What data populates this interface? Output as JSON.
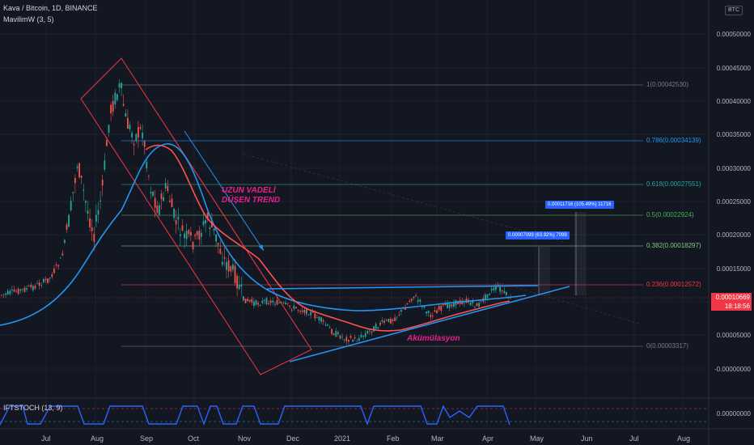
{
  "header": {
    "symbol_line": "Kava / Bitcoin, 1D, BINANCE",
    "indicator": "MavilimW (3, 5)",
    "currency_badge": "BTC"
  },
  "indicator_pane": {
    "label": "IFTSTOCH (13, 9)",
    "value": "0.00000000"
  },
  "price_axis": {
    "labels": [
      "0.00050000",
      "0.00045000",
      "0.00040000",
      "0.00035000",
      "0.00030000",
      "0.00025000",
      "0.00020000",
      "0.00015000",
      "0.00005000",
      "-0.00000000"
    ]
  },
  "current_price": {
    "price": "0.00010669",
    "countdown": "18:18:56",
    "color": "#f23645"
  },
  "fib_levels": [
    {
      "label": "1(0.00042530)",
      "color": "#787b86"
    },
    {
      "label": "0.786(0.00034139)",
      "color": "#2196f3"
    },
    {
      "label": "0.618(0.00027551)",
      "color": "#26a69a"
    },
    {
      "label": "0.5(0.00022924)",
      "color": "#4caf50"
    },
    {
      "label": "0.382(0.00018297)",
      "color": "#81c784"
    },
    {
      "label": "0.236(0.00012572)",
      "color": "#f23645"
    },
    {
      "label": "0(0.00003317)",
      "color": "#787b86"
    }
  ],
  "callouts": [
    {
      "text": "0.00011716 (105.49%) 11716"
    },
    {
      "text": "0.00007099 (63.92%) 7099"
    }
  ],
  "annotations": {
    "downtrend": [
      "UZUN VADELİ",
      "DÜŞEN TREND"
    ],
    "accumulation": "Akümülasyon"
  },
  "time_axis": {
    "labels": [
      "Jul",
      "Aug",
      "Sep",
      "Oct",
      "Nov",
      "Dec",
      "2021",
      "Feb",
      "Mar",
      "Apr",
      "May",
      "Jun",
      "Jul",
      "Aug"
    ]
  },
  "colors": {
    "background": "#131722",
    "up_candle": "#26a69a",
    "down_candle": "#ef5350",
    "ma_blue": "#2196f3",
    "ma_red": "#ff5252",
    "annotation_pink": "#e91e8c",
    "stoch_line": "#2962ff"
  }
}
